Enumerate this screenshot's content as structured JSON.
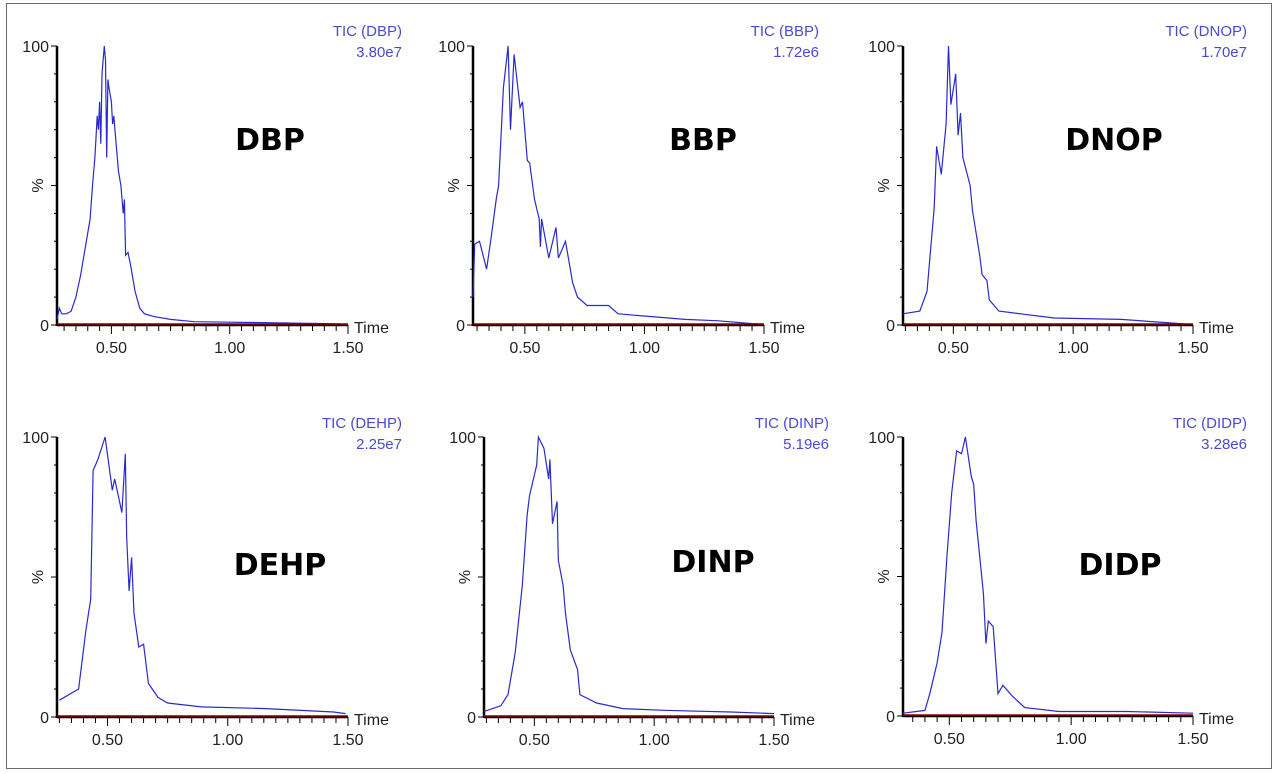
{
  "chart_data": [
    {
      "type": "line",
      "compound": "DBP",
      "tic_label": "TIC (DBP)",
      "intensity": "3.80e7",
      "xlabel": "Time",
      "ylabel": "%",
      "y_ticks": [
        "100",
        "0"
      ],
      "x_ticks": [
        "0.50",
        "1.00",
        "1.50"
      ],
      "xlim": [
        0.27,
        1.5
      ],
      "ylim": [
        0,
        100
      ],
      "color": "#2a2acc",
      "baseline_color": "#8b0000",
      "x": [
        0.27,
        0.28,
        0.29,
        0.31,
        0.33,
        0.35,
        0.37,
        0.39,
        0.41,
        0.42,
        0.43,
        0.44,
        0.445,
        0.45,
        0.455,
        0.46,
        0.47,
        0.475,
        0.48,
        0.485,
        0.49,
        0.5,
        0.505,
        0.51,
        0.52,
        0.53,
        0.54,
        0.55,
        0.555,
        0.56,
        0.57,
        0.58,
        0.6,
        0.62,
        0.64,
        0.68,
        0.75,
        0.85,
        1.0,
        1.2,
        1.4,
        1.5
      ],
      "y": [
        2,
        6,
        4,
        4,
        5,
        10,
        18,
        28,
        38,
        50,
        60,
        75,
        70,
        80,
        65,
        90,
        100,
        95,
        60,
        88,
        85,
        80,
        72,
        75,
        65,
        55,
        50,
        40,
        45,
        25,
        26,
        22,
        12,
        6,
        4,
        3,
        2,
        1.2,
        1,
        0.8,
        0.5,
        0.3
      ]
    },
    {
      "type": "line",
      "compound": "BBP",
      "tic_label": "TIC (BBP)",
      "intensity": "1.72e6",
      "xlabel": "Time",
      "ylabel": "%",
      "y_ticks": [
        "100",
        "0"
      ],
      "x_ticks": [
        "0.50",
        "1.00",
        "1.50"
      ],
      "xlim": [
        0.283,
        1.5
      ],
      "ylim": [
        0,
        100
      ],
      "color": "#2a2acc",
      "baseline_color": "#8b0000",
      "x": [
        0.283,
        0.29,
        0.31,
        0.34,
        0.36,
        0.38,
        0.39,
        0.41,
        0.43,
        0.44,
        0.455,
        0.48,
        0.49,
        0.51,
        0.52,
        0.54,
        0.56,
        0.565,
        0.57,
        0.6,
        0.63,
        0.64,
        0.67,
        0.7,
        0.72,
        0.76,
        0.85,
        0.89,
        1.03,
        1.17,
        1.31,
        1.45,
        1.5
      ],
      "y": [
        10,
        29,
        30,
        20,
        32,
        45,
        50,
        85,
        100,
        70,
        97,
        78,
        80,
        59,
        58,
        45,
        38,
        28,
        38,
        24,
        35,
        24,
        30,
        15,
        10,
        7,
        7,
        4,
        3,
        2,
        1.5,
        0.5,
        0.3
      ]
    },
    {
      "type": "line",
      "compound": "DNOP",
      "tic_label": "TIC (DNOP)",
      "intensity": "1.70e7",
      "xlabel": "Time",
      "ylabel": "%",
      "y_ticks": [
        "100",
        "0"
      ],
      "x_ticks": [
        "0.50",
        "1.00",
        "1.50"
      ],
      "xlim": [
        0.29,
        1.5
      ],
      "ylim": [
        0,
        100
      ],
      "color": "#2a2acc",
      "baseline_color": "#8b0000",
      "x": [
        0.29,
        0.36,
        0.39,
        0.42,
        0.43,
        0.45,
        0.47,
        0.48,
        0.49,
        0.51,
        0.52,
        0.53,
        0.54,
        0.57,
        0.58,
        0.61,
        0.62,
        0.64,
        0.65,
        0.69,
        0.78,
        0.92,
        1.2,
        1.41,
        1.48
      ],
      "y": [
        4,
        5,
        12,
        42,
        64,
        54,
        72,
        100,
        79,
        90,
        68,
        76,
        60,
        50,
        41,
        25,
        18,
        16,
        9,
        5,
        4,
        2.5,
        2,
        0.7,
        0.3
      ]
    },
    {
      "type": "line",
      "compound": "DEHP",
      "tic_label": "TIC (DEHP)",
      "intensity": "2.25e7",
      "xlabel": "Time",
      "ylabel": "%",
      "y_ticks": [
        "100",
        "0"
      ],
      "x_ticks": [
        "0.50",
        "1.00",
        "1.50"
      ],
      "xlim": [
        0.29,
        1.5
      ],
      "ylim": [
        0,
        100
      ],
      "color": "#2a2acc",
      "baseline_color": "#8b0000",
      "x": [
        0.3,
        0.38,
        0.41,
        0.43,
        0.44,
        0.46,
        0.49,
        0.52,
        0.53,
        0.56,
        0.574,
        0.58,
        0.59,
        0.6,
        0.61,
        0.63,
        0.65,
        0.67,
        0.71,
        0.75,
        0.89,
        1.16,
        1.44,
        1.49
      ],
      "y": [
        6,
        10,
        31,
        42,
        88,
        92,
        100,
        81,
        85,
        73,
        94,
        64,
        45,
        57,
        37,
        25,
        26,
        12,
        7,
        5,
        3.6,
        3,
        1.8,
        1.2
      ]
    },
    {
      "type": "line",
      "compound": "DINP",
      "tic_label": "TIC (DINP)",
      "intensity": "5.19e6",
      "xlabel": "Time",
      "ylabel": "%",
      "y_ticks": [
        "100",
        "0"
      ],
      "x_ticks": [
        "0.50",
        "1.00",
        "1.50"
      ],
      "xlim": [
        0.29,
        1.5
      ],
      "ylim": [
        0,
        100
      ],
      "color": "#2a2acc",
      "baseline_color": "#8b0000",
      "x": [
        0.29,
        0.36,
        0.39,
        0.42,
        0.45,
        0.47,
        0.48,
        0.51,
        0.517,
        0.54,
        0.56,
        0.565,
        0.576,
        0.595,
        0.6,
        0.62,
        0.63,
        0.65,
        0.68,
        0.69,
        0.76,
        0.87,
        1.04,
        1.32,
        1.5
      ],
      "y": [
        2,
        4,
        8,
        23,
        47,
        72,
        79,
        90,
        100,
        96,
        85,
        92,
        69,
        77,
        56,
        47,
        37,
        24,
        17,
        8,
        5,
        3,
        2.4,
        1.8,
        1.2
      ]
    },
    {
      "type": "line",
      "compound": "DIDP",
      "tic_label": "TIC (DIDP)",
      "intensity": "3.28e6",
      "xlabel": "Time",
      "ylabel": "%",
      "y_ticks": [
        "100",
        "0"
      ],
      "x_ticks": [
        "0.50",
        "1.00",
        "1.50"
      ],
      "xlim": [
        0.31,
        1.5
      ],
      "ylim": [
        0,
        100
      ],
      "color": "#2a2acc",
      "baseline_color": "#8b0000",
      "x": [
        0.31,
        0.4,
        0.42,
        0.45,
        0.47,
        0.49,
        0.51,
        0.53,
        0.55,
        0.566,
        0.59,
        0.6,
        0.61,
        0.64,
        0.65,
        0.66,
        0.68,
        0.7,
        0.72,
        0.76,
        0.81,
        0.95,
        1.23,
        1.5
      ],
      "y": [
        1,
        2,
        8,
        19,
        30,
        57,
        80,
        95,
        94,
        100,
        86,
        83,
        70,
        44,
        26,
        34,
        32,
        8,
        11,
        7,
        3,
        1.6,
        1.6,
        1
      ]
    }
  ]
}
